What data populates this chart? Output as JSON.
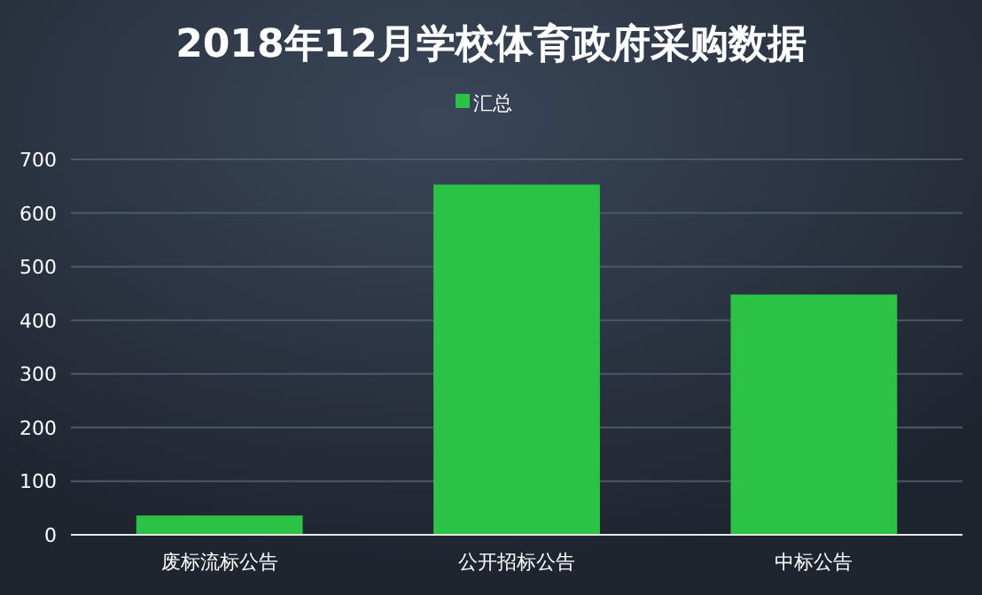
{
  "chart_data": {
    "type": "bar",
    "title": "2018年12月学校体育政府采购数据",
    "categories": [
      "废标流标公告",
      "公开招标公告",
      "中标公告"
    ],
    "series": [
      {
        "name": "汇总",
        "color": "#2cc245",
        "values": [
          36,
          653,
          448
        ]
      }
    ],
    "ylim": [
      0,
      700
    ],
    "yticks": [
      0,
      100,
      200,
      300,
      400,
      500,
      600,
      700
    ],
    "grid": "y",
    "legend": "top"
  }
}
